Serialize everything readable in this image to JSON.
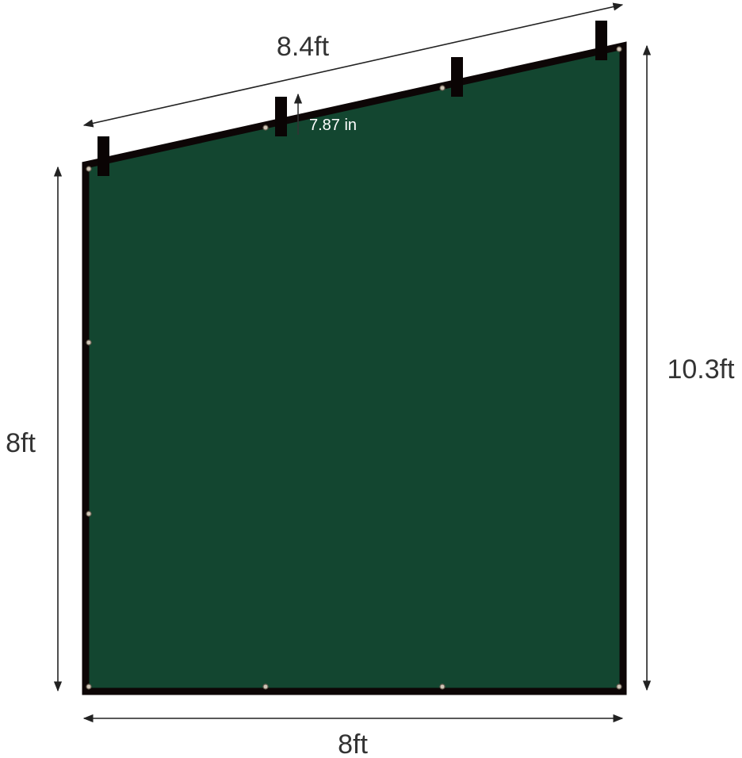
{
  "dimensions": {
    "top_edge": "8.4ft",
    "left_edge": "8ft",
    "right_edge": "10.3ft",
    "bottom_edge": "8ft",
    "strap_spacing": "7.87 in"
  },
  "colors": {
    "panel_fill": "#134630",
    "border": "#0d0606",
    "arrow": "#222222",
    "strap_label": "#ffffff"
  }
}
